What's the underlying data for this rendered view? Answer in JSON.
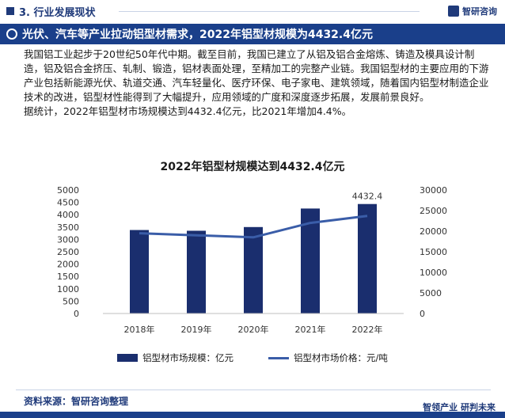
{
  "header": {
    "section_label": "3. 行业发展现状",
    "brand": "智研咨询"
  },
  "title_bar": {
    "text": "光伏、汽车等产业拉动铝型材需求，2022年铝型材规模为4432.4亿元"
  },
  "body": {
    "paragraph1": "我国铝工业起步于20世纪50年代中期。截至目前，我国已建立了从铝及铝合金熔炼、铸造及模具设计制造，铝及铝合金挤压、轧制、锻造，铝材表面处理，至精加工的完整产业链。我国铝型材的主要应用的下游产业包括新能源光伏、轨道交通、汽车轻量化、医疗环保、电子家电、建筑领域，随着国内铝型材制造企业技术的改进，铝型材性能得到了大幅提升，应用领域的广度和深度逐步拓展，发展前景良好。",
    "paragraph2": "据统计，2022年铝型材市场规模达到4432.4亿元，比2021年增加4.4%。"
  },
  "chart_data": {
    "type": "bar",
    "title": "2022年铝型材规模达到4432.4亿元",
    "categories": [
      "2018年",
      "2019年",
      "2020年",
      "2021年",
      "2022年"
    ],
    "series": [
      {
        "name": "铝型材市场规模：亿元",
        "type": "bar",
        "axis": "left",
        "values": [
          3380,
          3350,
          3500,
          4250,
          4432.4
        ],
        "color": "#1a2e6e"
      },
      {
        "name": "铝型材市场价格：元/吨",
        "type": "line",
        "axis": "right",
        "values": [
          19500,
          19000,
          18500,
          22000,
          23700
        ],
        "color": "#3a5da8"
      }
    ],
    "left_axis": {
      "ylim": [
        0,
        5000
      ],
      "ticks": [
        "0",
        "500",
        "1000",
        "1500",
        "2000",
        "2500",
        "3000",
        "3500",
        "4000",
        "4500",
        "5000"
      ]
    },
    "right_axis": {
      "ylim": [
        0,
        30000
      ],
      "ticks": [
        "0",
        "5000",
        "10000",
        "15000",
        "20000",
        "25000",
        "30000"
      ]
    },
    "data_labels": [
      {
        "category": "2022年",
        "text": "4432.4"
      }
    ],
    "grid": false,
    "legend_position": "bottom"
  },
  "footer": {
    "source": "资料来源：智研咨询整理",
    "slogan": "智领产业 研判未来"
  }
}
